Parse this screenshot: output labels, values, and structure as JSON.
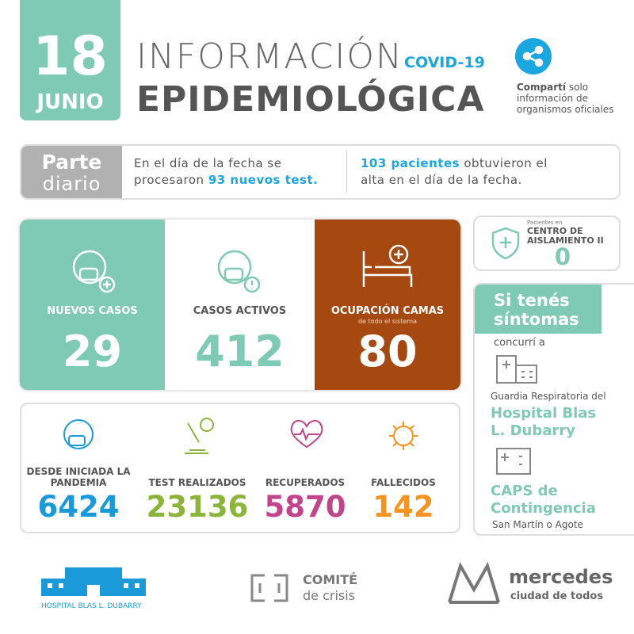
{
  "header": {
    "day": "18",
    "month": "JUNIO",
    "title_top": "INFORMACIÓN",
    "tag": "COVID-19",
    "title_bottom": "EPIDEMIOLÓGICA",
    "share_bold": "Compartí",
    "share_text": "solo información de organismos oficiales"
  },
  "report": {
    "label_top": "Parte",
    "label_bottom": "diario",
    "left_text": "En el día de la fecha se procesaron",
    "left_highlight": "93 nuevos test.",
    "right_highlight": "103 pacientes",
    "right_text": "obtuvieron el alta en el día de la fecha."
  },
  "stats": [
    {
      "label": "NUEVOS CASOS",
      "value": 29
    },
    {
      "label": "CASOS ACTIVOS",
      "value": 412
    },
    {
      "label": "OCUPACIÓN CAMAS",
      "sublabel": "de todo el sistema",
      "value": 80
    }
  ],
  "isolation": {
    "pre": "Pacientes en",
    "label": "CENTRO DE AISLAMIENTO II",
    "value": 0
  },
  "totals": [
    {
      "label": "DESDE INICIADA LA PANDEMIA",
      "value": 6424
    },
    {
      "label": "TEST REALIZADOS",
      "value": 23136
    },
    {
      "label": "RECUPERADOS",
      "value": 5870
    },
    {
      "label": "FALLECIDOS",
      "value": 142
    }
  ],
  "symptoms": {
    "title": "Si tenés síntomas",
    "intro": "concurrí a",
    "place_1_pre": "Guardia Respiratoria del",
    "place_1": "Hospital Blas L. Dubarry",
    "place_2": "CAPS de Contingencia",
    "place_2_address": "San Martín o Agote"
  },
  "footer": {
    "hospital": "HOSPITAL BLAS L. DUBARRY",
    "committee_top": "COMITÉ",
    "committee_bottom": "de crisis",
    "city": "mercedes",
    "city_tagline": "ciudad de todos"
  }
}
